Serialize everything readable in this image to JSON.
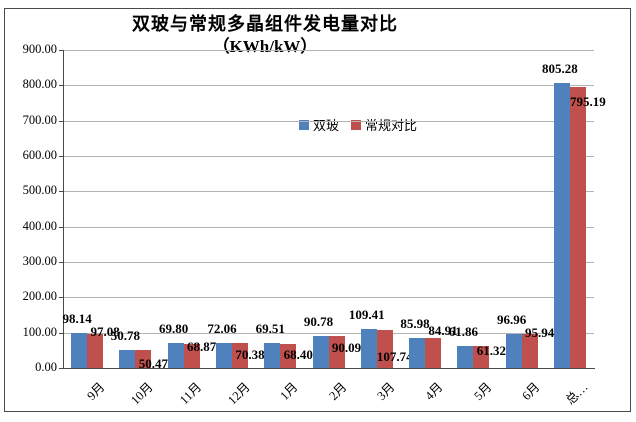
{
  "chart_data": {
    "type": "bar",
    "title": "双玻与常规多晶组件发电量对比",
    "subtitle": "（KWh/kW）",
    "categories": [
      "9月",
      "10月",
      "11月",
      "12月",
      "1月",
      "2月",
      "3月",
      "4月",
      "5月",
      "6月",
      "总…"
    ],
    "series": [
      {
        "name": "双玻",
        "color": "#4F81BD",
        "values": [
          98.14,
          50.78,
          69.8,
          72.06,
          69.51,
          90.78,
          109.41,
          85.98,
          61.86,
          96.96,
          805.28
        ],
        "labels": [
          "98.14",
          "50.78",
          "69.80",
          "72.06",
          "69.51",
          "90.78",
          "109.41",
          "85.98",
          "61.86",
          "96.96",
          "805.28"
        ]
      },
      {
        "name": "常规对比",
        "color": "#C0504D",
        "values": [
          97.08,
          50.47,
          68.87,
          70.38,
          68.4,
          90.09,
          107.74,
          84.91,
          61.32,
          95.94,
          795.19
        ],
        "labels": [
          "97.08",
          "50.47",
          "68.87",
          "70.38",
          "68.40",
          "90.09",
          "107.74",
          "84.91",
          "61.32",
          "95.94",
          "795.19"
        ]
      }
    ],
    "ylim": [
      0,
      900
    ],
    "ytick_step": 100,
    "ytick_labels": [
      "900.00",
      "800.00",
      "700.00",
      "600.00",
      "500.00",
      "400.00",
      "300.00",
      "200.00",
      "100.00",
      "0.00"
    ],
    "grid": true,
    "gridline_color": "#b3b3b3",
    "axis_color": "#4a4a4a",
    "legend_position": "top-center-inside",
    "xlabel_rotation": -45,
    "data_labels": true,
    "label_dy_series2": [
      -2,
      13,
      3,
      11,
      11,
      11,
      27,
      -7,
      4,
      -2,
      14
    ]
  }
}
